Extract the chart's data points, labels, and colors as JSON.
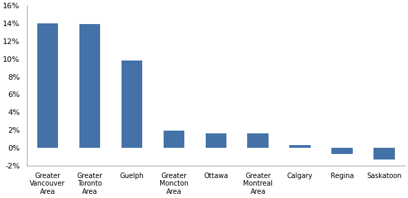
{
  "categories": [
    "Greater\nVancouver\nArea",
    "Greater\nToronto\nArea",
    "Guelph",
    "Greater\nMoncton\nArea",
    "Ottawa",
    "Greater\nMontreal\nArea",
    "Calgary",
    "Regina",
    "Saskatoon"
  ],
  "values": [
    0.14,
    0.139,
    0.098,
    0.019,
    0.016,
    0.016,
    0.003,
    -0.007,
    -0.013
  ],
  "bar_color": "#4472a8",
  "ylim": [
    -0.02,
    0.16
  ],
  "yticks": [
    -0.02,
    0.0,
    0.02,
    0.04,
    0.06,
    0.08,
    0.1,
    0.12,
    0.14,
    0.16
  ],
  "background_color": "#ffffff",
  "bar_width": 0.5
}
